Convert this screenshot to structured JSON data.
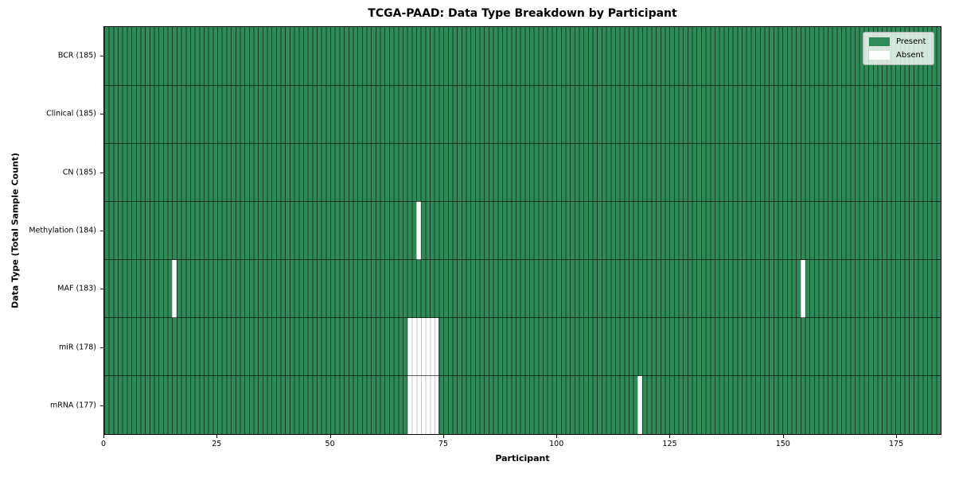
{
  "chart_data": {
    "type": "heatmap",
    "title": "TCGA-PAAD: Data Type Breakdown by Participant",
    "xlabel": "Participant",
    "ylabel": "Data Type (Total Sample Count)",
    "xlim": [
      0,
      185
    ],
    "x_ticks": [
      0,
      25,
      50,
      75,
      100,
      125,
      150,
      175
    ],
    "n_participants": 185,
    "grid": false,
    "legend": {
      "position": "upper right",
      "entries": [
        {
          "label": "Present",
          "color": "#2e8b57"
        },
        {
          "label": "Absent",
          "color": "#ffffff"
        }
      ]
    },
    "rows": [
      {
        "label": "BCR (185)",
        "data_type": "BCR",
        "present_count": 185,
        "absent_participants": []
      },
      {
        "label": "Clinical (185)",
        "data_type": "Clinical",
        "present_count": 185,
        "absent_participants": []
      },
      {
        "label": "CN (185)",
        "data_type": "CN",
        "present_count": 185,
        "absent_participants": []
      },
      {
        "label": "Methylation (184)",
        "data_type": "Methylation",
        "present_count": 184,
        "absent_participants": [
          69
        ]
      },
      {
        "label": "MAF (183)",
        "data_type": "MAF",
        "present_count": 183,
        "absent_participants": [
          15,
          154
        ]
      },
      {
        "label": "miR (178)",
        "data_type": "miR",
        "present_count": 178,
        "absent_participants": [
          67,
          68,
          69,
          70,
          71,
          72,
          73
        ]
      },
      {
        "label": "mRNA (177)",
        "data_type": "mRNA",
        "present_count": 177,
        "absent_participants": [
          67,
          68,
          69,
          70,
          71,
          72,
          73,
          118
        ]
      }
    ],
    "colors": {
      "present": "#2e8b57",
      "absent": "#ffffff",
      "cell_edge": "#16402a",
      "absent_edge": "#c9c9c9",
      "row_separator": "#0d2a1a",
      "spine": "#000000"
    }
  }
}
